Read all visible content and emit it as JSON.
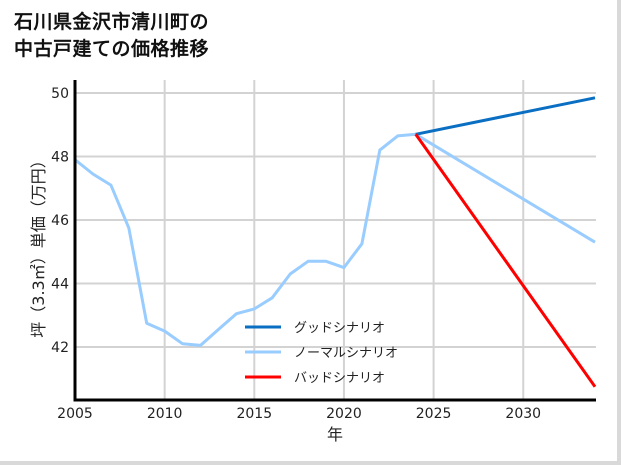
{
  "title_line1": "石川県金沢市清川町の",
  "title_line2": "中古戸建ての価格推移",
  "chart_data": {
    "type": "line",
    "title": "石川県金沢市清川町の中古戸建ての価格推移",
    "xlabel": "年",
    "ylabel": "坪（3.3㎡）単価（万円）",
    "xlim": [
      2005,
      2034
    ],
    "ylim": [
      40.6,
      50.4
    ],
    "xticks": [
      2005,
      2010,
      2015,
      2020,
      2025,
      2030
    ],
    "yticks": [
      42,
      44,
      46,
      48,
      50
    ],
    "grid": true,
    "legend_position": "lower center",
    "series": [
      {
        "name": "グッドシナリオ",
        "color": "#0a6fc2",
        "x": [
          2024,
          2034
        ],
        "values": [
          48.7,
          49.85
        ]
      },
      {
        "name": "ノーマルシナリオ",
        "color": "#99ccff",
        "x": [
          2005,
          2006,
          2007,
          2008,
          2009,
          2010,
          2011,
          2012,
          2013,
          2014,
          2015,
          2016,
          2017,
          2018,
          2019,
          2020,
          2021,
          2022,
          2023,
          2024,
          2034
        ],
        "values": [
          47.9,
          47.45,
          47.1,
          45.75,
          42.75,
          42.5,
          42.1,
          42.05,
          42.55,
          43.05,
          43.2,
          43.55,
          44.3,
          44.7,
          44.7,
          44.5,
          45.25,
          48.2,
          48.65,
          48.7,
          45.3
        ]
      },
      {
        "name": "バッドシナリオ",
        "color": "#ff0000",
        "x": [
          2024,
          2034
        ],
        "values": [
          48.7,
          40.75
        ]
      }
    ]
  }
}
